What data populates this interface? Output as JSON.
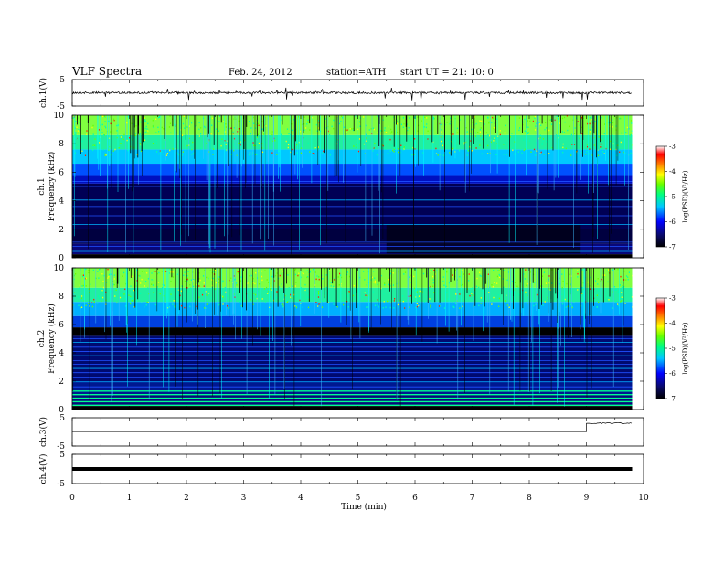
{
  "header": {
    "title": "VLF  Spectra",
    "date": "Feb. 24, 2012",
    "station": "station=ATH",
    "start": "start  UT  =   21: 10: 0"
  },
  "chart_data": [
    {
      "id": "ch1-timeseries",
      "type": "line",
      "ylabel": "ch.1(V)",
      "ylim": [
        -5,
        5
      ],
      "yticks": [
        "5",
        "-5"
      ],
      "baseline": 0,
      "note_spikes": "frequent negative spikes"
    },
    {
      "id": "ch1-spectrogram",
      "type": "heatmap",
      "ylabel_top": "ch.1",
      "ylabel": "Frequency  (kHz)",
      "ylim": [
        0,
        10
      ],
      "yticks": [
        "0",
        "2",
        "4",
        "6",
        "8",
        "10"
      ],
      "colorbar_label": "log(PSD)(V²/Hz)",
      "colorbar_range": [
        -7,
        -3
      ],
      "colorbar_ticks": [
        "-3",
        "-4",
        "-5",
        "-6",
        "-7"
      ]
    },
    {
      "id": "ch2-spectrogram",
      "type": "heatmap",
      "ylabel_top": "ch.2",
      "ylabel": "Frequency  (kHz)",
      "ylim": [
        0,
        10
      ],
      "yticks": [
        "0",
        "2",
        "4",
        "6",
        "8",
        "10"
      ],
      "colorbar_label": "log(PSD)(V²/Hz)",
      "colorbar_range": [
        -7,
        -3
      ],
      "colorbar_ticks": [
        "-3",
        "-4",
        "-5",
        "-6",
        "-7"
      ]
    },
    {
      "id": "ch3-timeseries",
      "type": "line",
      "ylabel": "ch.3(V)",
      "ylim": [
        -5,
        5
      ],
      "yticks": [
        "5",
        "-5"
      ]
    },
    {
      "id": "ch4-timeseries",
      "type": "line",
      "ylabel": "ch.4(V)",
      "ylim": [
        -5,
        5
      ],
      "yticks": [
        "5",
        "-5"
      ]
    }
  ],
  "x_axis": {
    "label": "Time  (min)",
    "xlim": [
      0,
      10
    ],
    "ticks": [
      "0",
      "1",
      "2",
      "3",
      "4",
      "5",
      "6",
      "7",
      "8",
      "9",
      "10"
    ],
    "data_end": 9.8
  },
  "colors": {
    "colormap": [
      "#000000",
      "#0a0a6e",
      "#0000ff",
      "#00c8ff",
      "#00ff80",
      "#66ff00",
      "#ffff00",
      "#ff8000",
      "#ff0000",
      "#ffffff"
    ],
    "background": "#ffffff",
    "line": "#000000"
  }
}
